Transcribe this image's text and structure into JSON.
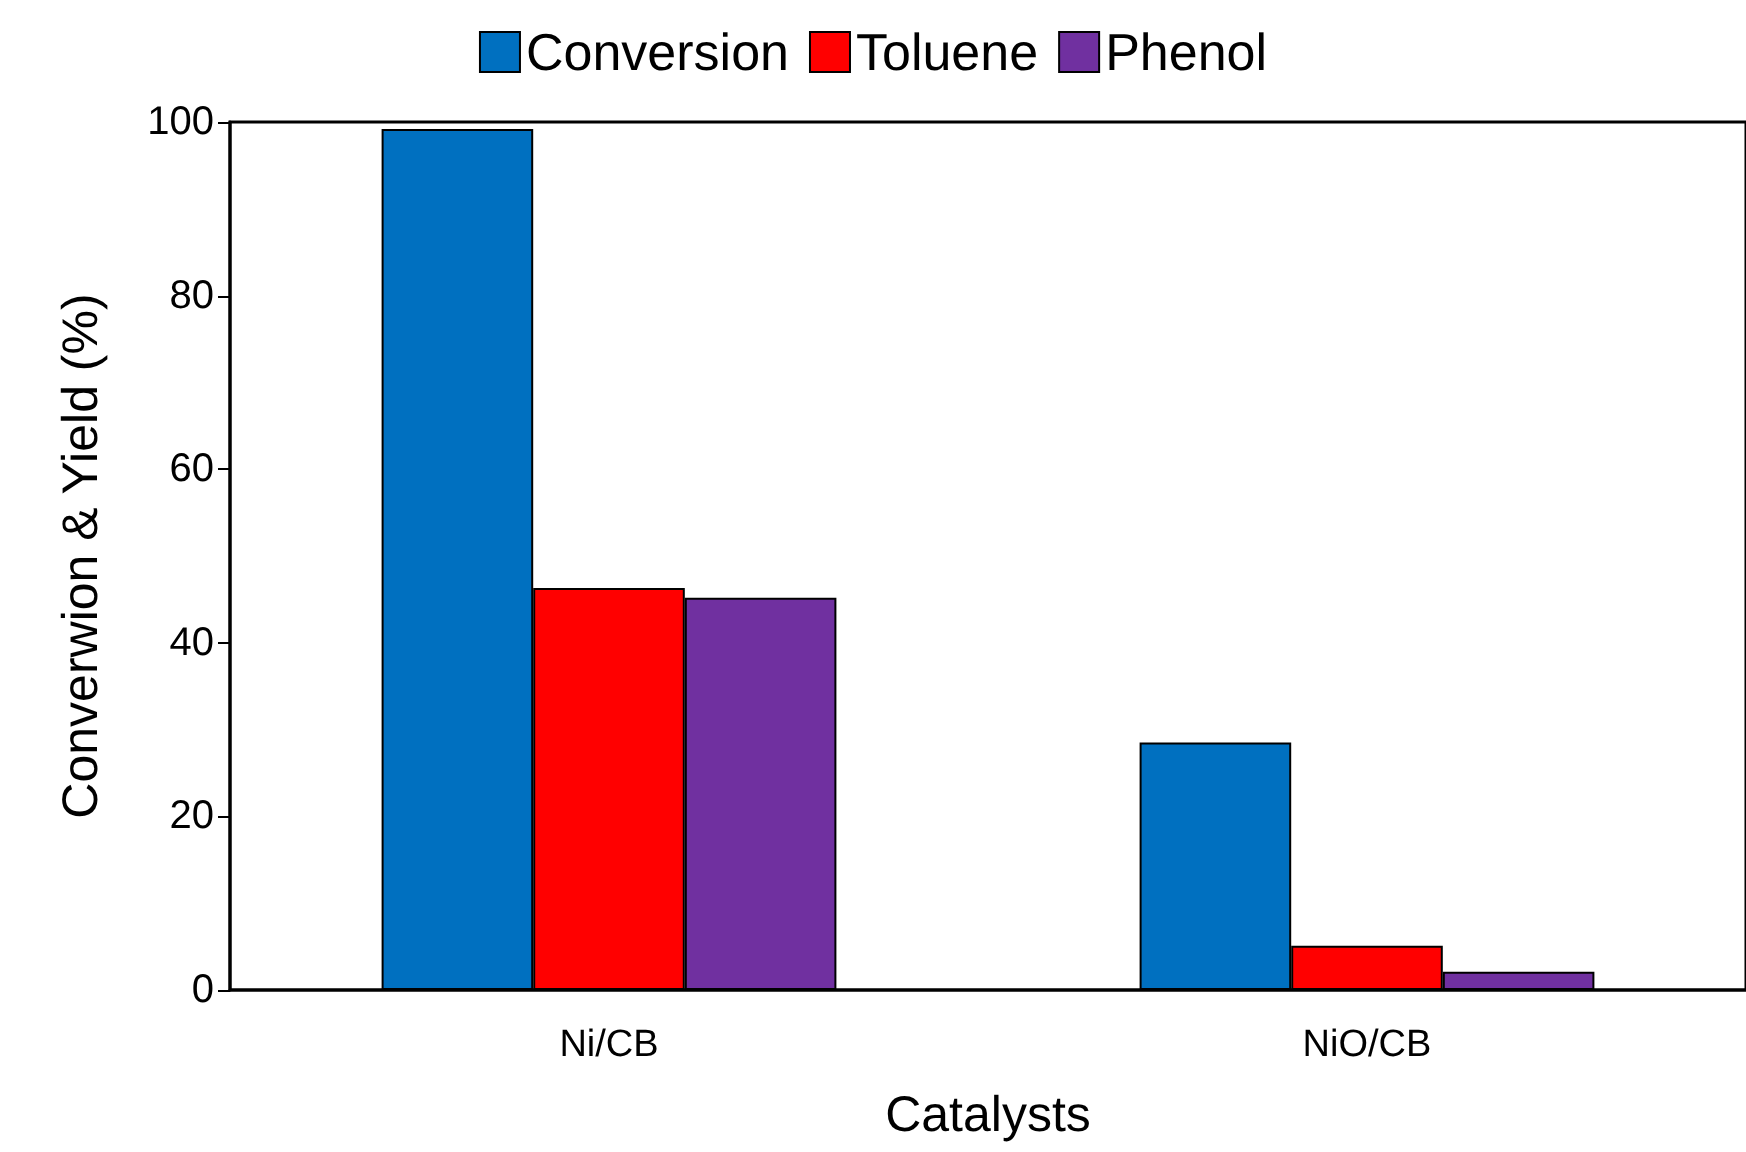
{
  "chart_data": {
    "type": "bar",
    "xlabel": "Catalysts",
    "ylabel": "Converwion & Yield (%)",
    "categories": [
      "Ni/CB",
      "NiO/CB"
    ],
    "series": [
      {
        "name": "Conversion",
        "color": "#0070c0",
        "values": [
          99.2,
          28.5
        ]
      },
      {
        "name": "Toluene",
        "color": "#ff0000",
        "values": [
          46.3,
          5.1
        ]
      },
      {
        "name": "Phenol",
        "color": "#7030a0",
        "values": [
          45.2,
          2.1
        ]
      }
    ],
    "ylim": [
      0,
      100
    ],
    "yticks": [
      0,
      20,
      40,
      60,
      80,
      100
    ],
    "grid": false,
    "legend": "top"
  }
}
